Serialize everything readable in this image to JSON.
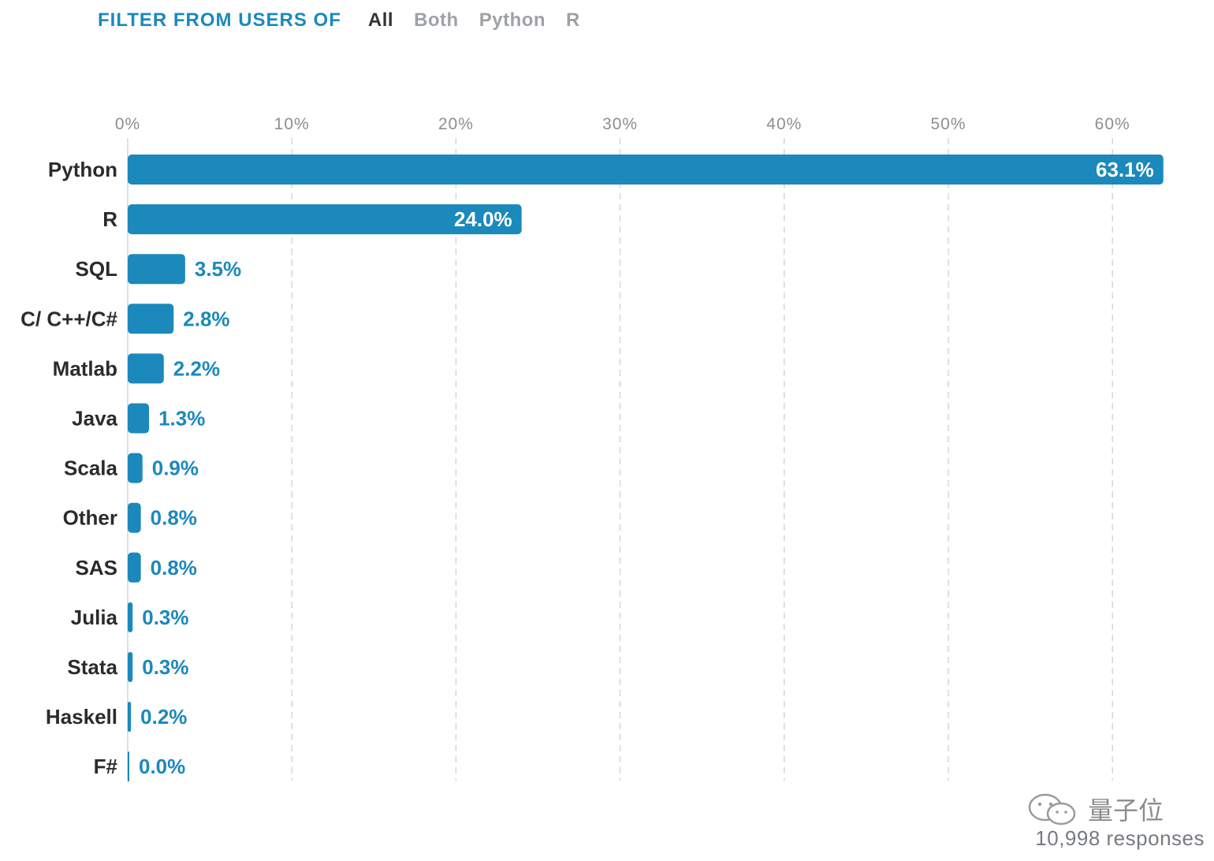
{
  "filter": {
    "heading": "FILTER FROM USERS OF",
    "options": [
      {
        "label": "All",
        "active": true
      },
      {
        "label": "Both",
        "active": false
      },
      {
        "label": "Python",
        "active": false
      },
      {
        "label": "R",
        "active": false
      }
    ]
  },
  "colors": {
    "bar": "#1b89bb",
    "value_label": "#1b89bb",
    "value_label_inside": "#ffffff",
    "grid": "#d6d6d6",
    "active_filter": "#333333",
    "inactive_filter": "#9ea2a6",
    "heading": "#1b89bb"
  },
  "chart_data": {
    "type": "bar",
    "orientation": "horizontal",
    "categories": [
      "Python",
      "R",
      "SQL",
      "C/ C++/C#",
      "Matlab",
      "Java",
      "Scala",
      "Other",
      "SAS",
      "Julia",
      "Stata",
      "Haskell",
      "F#"
    ],
    "values": [
      63.1,
      24.0,
      3.5,
      2.8,
      2.2,
      1.3,
      0.9,
      0.8,
      0.8,
      0.3,
      0.3,
      0.2,
      0.0
    ],
    "value_labels": [
      "63.1%",
      "24.0%",
      "3.5%",
      "2.8%",
      "2.2%",
      "1.3%",
      "0.9%",
      "0.8%",
      "0.8%",
      "0.3%",
      "0.3%",
      "0.2%",
      "0.0%"
    ],
    "xlim": [
      0,
      63.1
    ],
    "xticks": [
      0,
      10,
      20,
      30,
      40,
      50,
      60
    ],
    "xtick_labels": [
      "0%",
      "10%",
      "20%",
      "30%",
      "40%",
      "50%",
      "60%"
    ],
    "x_axis_position": "top",
    "grid": true,
    "grid_style": "dashed vertical"
  },
  "watermark": {
    "text": "量子位",
    "icon": "wechat-icon"
  },
  "responses": "10,998 responses"
}
